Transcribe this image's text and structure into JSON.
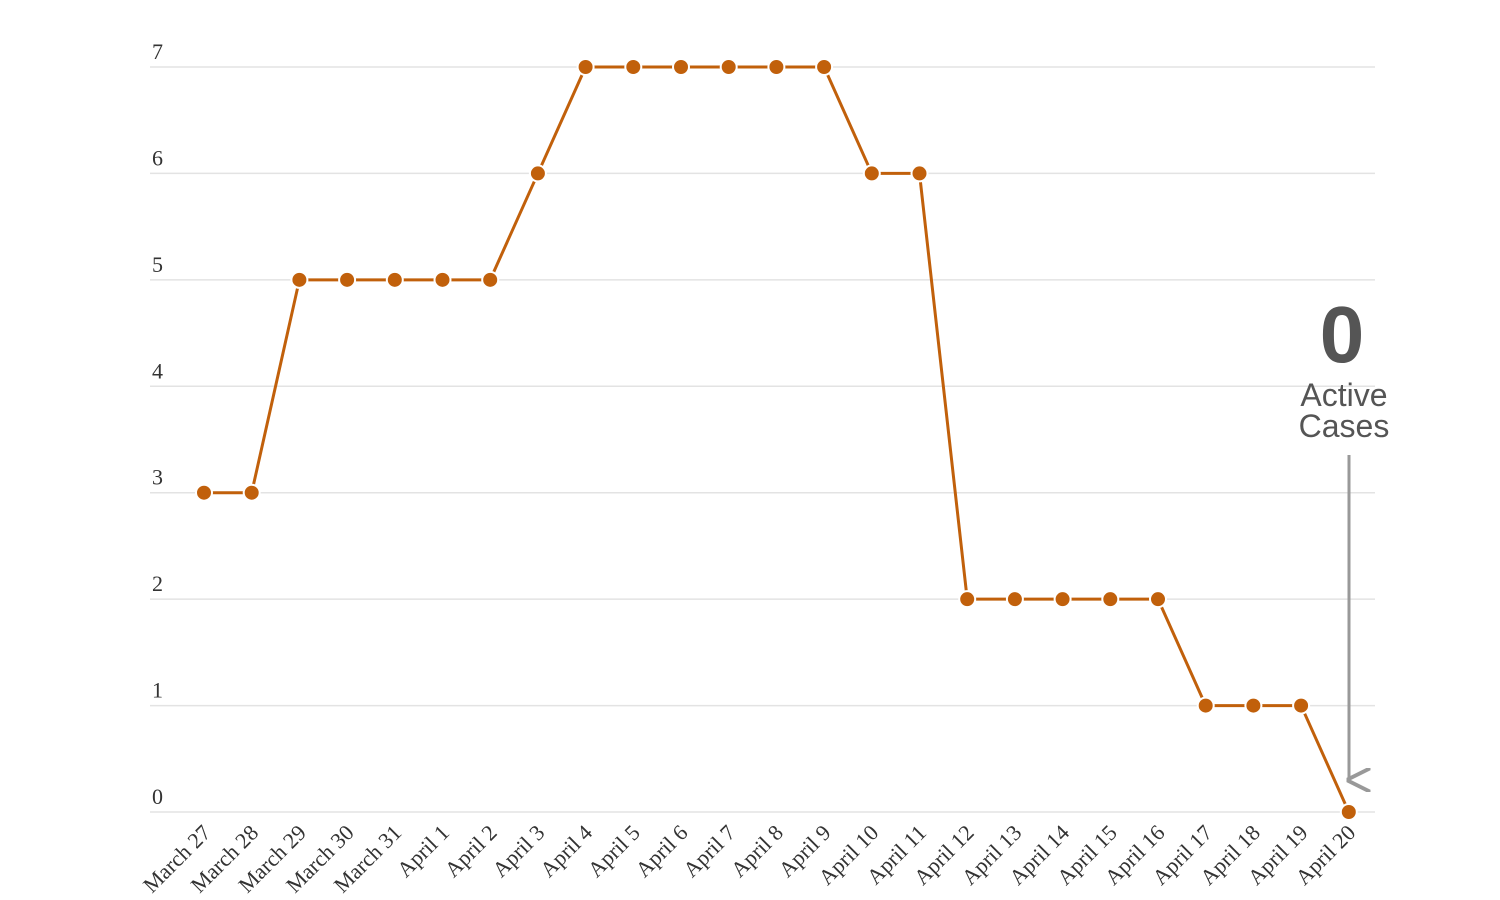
{
  "chart_data": {
    "type": "line",
    "categories": [
      "March 27",
      "March 28",
      "March 29",
      "March 30",
      "March 31",
      "April 1",
      "April 2",
      "April 3",
      "April 4",
      "April 5",
      "April 6",
      "April 7",
      "April 8",
      "April 9",
      "April 10",
      "April 11",
      "April 12",
      "April 13",
      "April 14",
      "April 15",
      "April 16",
      "April 17",
      "April 18",
      "April 19",
      "April 20"
    ],
    "values": [
      3,
      3,
      5,
      5,
      5,
      5,
      5,
      6,
      7,
      7,
      7,
      7,
      7,
      7,
      6,
      6,
      2,
      2,
      2,
      2,
      2,
      1,
      1,
      1,
      0
    ],
    "color": "#c1600b",
    "ylim": [
      0,
      7
    ],
    "yticks": [
      0,
      1,
      2,
      3,
      4,
      5,
      6,
      7
    ],
    "grid": true,
    "annotation": {
      "text": "0",
      "lines": [
        "Active",
        "Cases"
      ]
    }
  }
}
